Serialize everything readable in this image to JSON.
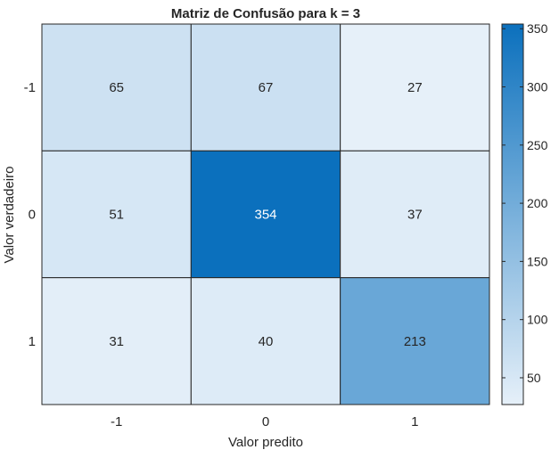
{
  "chart_data": {
    "type": "heatmap",
    "title": "Matriz de Confusão para k = 3",
    "xlabel": "Valor predito",
    "ylabel": "Valor verdadeiro",
    "x_categories": [
      "-1",
      "0",
      "1"
    ],
    "y_categories": [
      "-1",
      "0",
      "1"
    ],
    "values": [
      [
        65,
        67,
        27
      ],
      [
        51,
        354,
        37
      ],
      [
        31,
        40,
        213
      ]
    ],
    "colorbar": {
      "range": [
        27,
        354
      ],
      "ticks": [
        50,
        100,
        150,
        200,
        250,
        300,
        350
      ],
      "colors": {
        "low": "#e6f0f9",
        "high": "#0b70bd"
      }
    },
    "grid": true
  }
}
